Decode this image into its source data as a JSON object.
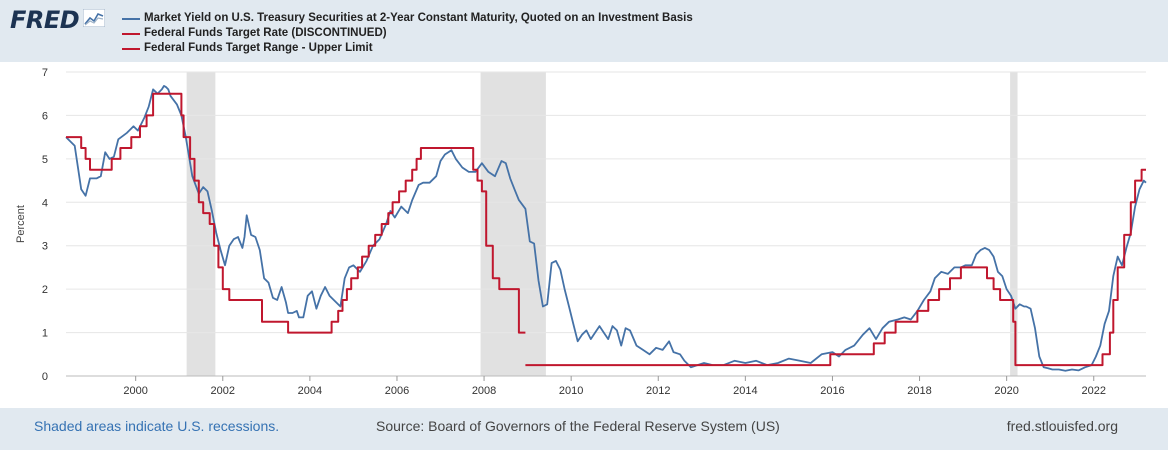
{
  "logo": {
    "text": "FRED"
  },
  "legend": [
    {
      "label": "Market Yield on U.S. Treasury Securities at 2-Year Constant Maturity, Quoted on an Investment Basis",
      "color": "#4572a7"
    },
    {
      "label": "Federal Funds Target Rate (DISCONTINUED)",
      "color": "#c0172e"
    },
    {
      "label": "Federal Funds Target Range - Upper Limit",
      "color": "#c0172e"
    }
  ],
  "footer": {
    "recession_note": "Shaded areas indicate U.S. recessions.",
    "source": "Source: Board of Governors of the Federal Reserve System (US)",
    "site": "fred.stlouisfed.org"
  },
  "chart_data": {
    "type": "line",
    "ylabel": "Percent",
    "xlim": [
      1998.4,
      2023.2
    ],
    "ylim": [
      0,
      7
    ],
    "y_ticks": [
      0,
      1,
      2,
      3,
      4,
      5,
      6,
      7
    ],
    "x_ticks": [
      2000,
      2002,
      2004,
      2006,
      2008,
      2010,
      2012,
      2014,
      2016,
      2018,
      2020,
      2022
    ],
    "grid": "horizontal",
    "recessions": [
      [
        2001.17,
        2001.83
      ],
      [
        2007.92,
        2009.42
      ],
      [
        2020.08,
        2020.25
      ]
    ],
    "series": [
      {
        "name": "Market Yield on U.S. Treasury Securities at 2-Year Constant Maturity, Quoted on an Investment Basis",
        "color": "#4572a7",
        "step": false,
        "points": [
          [
            1998.4,
            5.5
          ],
          [
            1998.6,
            5.3
          ],
          [
            1998.75,
            4.3
          ],
          [
            1998.85,
            4.15
          ],
          [
            1998.95,
            4.55
          ],
          [
            1999.1,
            4.55
          ],
          [
            1999.2,
            4.6
          ],
          [
            1999.3,
            5.15
          ],
          [
            1999.4,
            5.0
          ],
          [
            1999.5,
            5.05
          ],
          [
            1999.6,
            5.45
          ],
          [
            1999.8,
            5.6
          ],
          [
            1999.95,
            5.75
          ],
          [
            2000.05,
            5.65
          ],
          [
            2000.2,
            5.95
          ],
          [
            2000.3,
            6.2
          ],
          [
            2000.4,
            6.6
          ],
          [
            2000.5,
            6.5
          ],
          [
            2000.6,
            6.6
          ],
          [
            2000.65,
            6.68
          ],
          [
            2000.7,
            6.65
          ],
          [
            2000.75,
            6.6
          ],
          [
            2000.8,
            6.45
          ],
          [
            2000.95,
            6.25
          ],
          [
            2001.05,
            6.0
          ],
          [
            2001.15,
            5.5
          ],
          [
            2001.3,
            4.6
          ],
          [
            2001.45,
            4.2
          ],
          [
            2001.55,
            4.35
          ],
          [
            2001.65,
            4.25
          ],
          [
            2001.75,
            3.8
          ],
          [
            2001.85,
            3.3
          ],
          [
            2001.95,
            2.9
          ],
          [
            2002.05,
            2.55
          ],
          [
            2002.15,
            3.0
          ],
          [
            2002.25,
            3.15
          ],
          [
            2002.35,
            3.2
          ],
          [
            2002.45,
            2.95
          ],
          [
            2002.5,
            3.2
          ],
          [
            2002.55,
            3.7
          ],
          [
            2002.65,
            3.25
          ],
          [
            2002.75,
            3.2
          ],
          [
            2002.85,
            2.9
          ],
          [
            2002.95,
            2.25
          ],
          [
            2003.05,
            2.15
          ],
          [
            2003.15,
            1.8
          ],
          [
            2003.25,
            1.75
          ],
          [
            2003.35,
            2.05
          ],
          [
            2003.45,
            1.7
          ],
          [
            2003.5,
            1.45
          ],
          [
            2003.6,
            1.45
          ],
          [
            2003.7,
            1.5
          ],
          [
            2003.75,
            1.35
          ],
          [
            2003.85,
            1.35
          ],
          [
            2003.95,
            1.85
          ],
          [
            2004.05,
            1.95
          ],
          [
            2004.15,
            1.55
          ],
          [
            2004.25,
            1.85
          ],
          [
            2004.35,
            2.05
          ],
          [
            2004.45,
            1.85
          ],
          [
            2004.55,
            1.75
          ],
          [
            2004.7,
            1.6
          ],
          [
            2004.8,
            2.25
          ],
          [
            2004.9,
            2.5
          ],
          [
            2005.0,
            2.55
          ],
          [
            2005.15,
            2.4
          ],
          [
            2005.3,
            2.65
          ],
          [
            2005.45,
            3.0
          ],
          [
            2005.6,
            3.15
          ],
          [
            2005.75,
            3.5
          ],
          [
            2005.85,
            3.8
          ],
          [
            2005.95,
            3.65
          ],
          [
            2006.1,
            3.9
          ],
          [
            2006.25,
            3.75
          ],
          [
            2006.35,
            4.05
          ],
          [
            2006.5,
            4.4
          ],
          [
            2006.6,
            4.45
          ],
          [
            2006.75,
            4.45
          ],
          [
            2006.9,
            4.6
          ],
          [
            2007.0,
            4.95
          ],
          [
            2007.1,
            5.1
          ],
          [
            2007.25,
            5.2
          ],
          [
            2007.35,
            5.0
          ],
          [
            2007.5,
            4.8
          ],
          [
            2007.65,
            4.7
          ],
          [
            2007.8,
            4.7
          ],
          [
            2007.95,
            4.9
          ],
          [
            2008.1,
            4.7
          ],
          [
            2008.25,
            4.6
          ],
          [
            2008.4,
            4.95
          ],
          [
            2008.5,
            4.9
          ],
          [
            2008.6,
            4.55
          ],
          [
            2008.7,
            4.3
          ],
          [
            2008.8,
            4.05
          ],
          [
            2008.95,
            3.85
          ],
          [
            2009.05,
            3.1
          ],
          [
            2009.15,
            3.05
          ],
          [
            2009.25,
            2.2
          ],
          [
            2009.35,
            1.6
          ],
          [
            2009.45,
            1.65
          ],
          [
            2009.55,
            2.6
          ],
          [
            2009.65,
            2.65
          ],
          [
            2009.75,
            2.45
          ],
          [
            2009.85,
            2.0
          ],
          [
            2009.95,
            1.6
          ],
          [
            2010.05,
            1.2
          ],
          [
            2010.15,
            0.8
          ],
          [
            2010.25,
            0.95
          ],
          [
            2010.35,
            1.05
          ],
          [
            2010.45,
            0.85
          ],
          [
            2010.55,
            1.0
          ],
          [
            2010.65,
            1.15
          ],
          [
            2010.75,
            1.0
          ],
          [
            2010.85,
            0.85
          ],
          [
            2010.95,
            1.15
          ],
          [
            2011.05,
            1.05
          ],
          [
            2011.15,
            0.7
          ],
          [
            2011.25,
            1.1
          ],
          [
            2011.35,
            1.05
          ],
          [
            2011.5,
            0.7
          ],
          [
            2011.65,
            0.6
          ],
          [
            2011.8,
            0.5
          ],
          [
            2011.95,
            0.65
          ],
          [
            2012.1,
            0.6
          ],
          [
            2012.25,
            0.8
          ],
          [
            2012.35,
            0.55
          ],
          [
            2012.5,
            0.5
          ],
          [
            2012.6,
            0.35
          ],
          [
            2012.75,
            0.2
          ],
          [
            2012.9,
            0.25
          ],
          [
            2013.05,
            0.3
          ],
          [
            2013.25,
            0.25
          ],
          [
            2013.5,
            0.25
          ],
          [
            2013.75,
            0.35
          ],
          [
            2014.0,
            0.3
          ],
          [
            2014.25,
            0.35
          ],
          [
            2014.5,
            0.25
          ],
          [
            2014.75,
            0.3
          ],
          [
            2015.0,
            0.4
          ],
          [
            2015.25,
            0.35
          ],
          [
            2015.5,
            0.3
          ],
          [
            2015.75,
            0.5
          ],
          [
            2016.0,
            0.55
          ],
          [
            2016.15,
            0.45
          ],
          [
            2016.3,
            0.6
          ],
          [
            2016.5,
            0.7
          ],
          [
            2016.7,
            0.95
          ],
          [
            2016.85,
            1.1
          ],
          [
            2017.0,
            0.85
          ],
          [
            2017.15,
            1.1
          ],
          [
            2017.3,
            1.25
          ],
          [
            2017.5,
            1.3
          ],
          [
            2017.65,
            1.35
          ],
          [
            2017.8,
            1.3
          ],
          [
            2017.95,
            1.5
          ],
          [
            2018.1,
            1.75
          ],
          [
            2018.25,
            1.95
          ],
          [
            2018.35,
            2.25
          ],
          [
            2018.5,
            2.4
          ],
          [
            2018.65,
            2.35
          ],
          [
            2018.8,
            2.5
          ],
          [
            2018.95,
            2.5
          ],
          [
            2019.05,
            2.55
          ],
          [
            2019.2,
            2.55
          ],
          [
            2019.3,
            2.8
          ],
          [
            2019.4,
            2.9
          ],
          [
            2019.5,
            2.95
          ],
          [
            2019.6,
            2.9
          ],
          [
            2019.7,
            2.75
          ],
          [
            2019.8,
            2.4
          ],
          [
            2019.9,
            2.3
          ],
          [
            2020.0,
            2.0
          ],
          [
            2020.1,
            1.85
          ],
          [
            2020.2,
            1.55
          ],
          [
            2020.3,
            1.65
          ],
          [
            2020.4,
            1.6
          ],
          [
            2020.45,
            1.6
          ],
          [
            2020.55,
            1.55
          ],
          [
            2020.65,
            1.1
          ],
          [
            2020.75,
            0.45
          ],
          [
            2020.85,
            0.2
          ],
          [
            2020.95,
            0.18
          ],
          [
            2021.05,
            0.15
          ],
          [
            2021.2,
            0.15
          ],
          [
            2021.35,
            0.12
          ],
          [
            2021.5,
            0.15
          ],
          [
            2021.65,
            0.13
          ],
          [
            2021.8,
            0.2
          ],
          [
            2021.95,
            0.25
          ],
          [
            2022.05,
            0.45
          ],
          [
            2022.15,
            0.7
          ],
          [
            2022.25,
            1.2
          ],
          [
            2022.35,
            1.5
          ],
          [
            2022.45,
            2.3
          ],
          [
            2022.55,
            2.75
          ],
          [
            2022.65,
            2.55
          ],
          [
            2022.75,
            2.95
          ],
          [
            2022.85,
            3.3
          ],
          [
            2022.95,
            3.9
          ],
          [
            2023.05,
            4.3
          ],
          [
            2023.15,
            4.5
          ],
          [
            2023.2,
            4.45
          ]
        ]
      },
      {
        "name": "Federal Funds Target Rate (DISCONTINUED)",
        "color": "#c0172e",
        "step": true,
        "points": [
          [
            1998.4,
            5.5
          ],
          [
            1998.75,
            5.25
          ],
          [
            1998.85,
            5.0
          ],
          [
            1998.95,
            4.75
          ],
          [
            1999.45,
            5.0
          ],
          [
            1999.65,
            5.25
          ],
          [
            1999.9,
            5.5
          ],
          [
            2000.1,
            5.75
          ],
          [
            2000.25,
            6.0
          ],
          [
            2000.4,
            6.5
          ],
          [
            2001.05,
            6.0
          ],
          [
            2001.1,
            5.5
          ],
          [
            2001.25,
            5.0
          ],
          [
            2001.35,
            4.5
          ],
          [
            2001.45,
            4.0
          ],
          [
            2001.55,
            3.75
          ],
          [
            2001.7,
            3.5
          ],
          [
            2001.8,
            3.0
          ],
          [
            2001.9,
            2.5
          ],
          [
            2002.0,
            2.0
          ],
          [
            2002.15,
            1.75
          ],
          [
            2002.9,
            1.25
          ],
          [
            2003.5,
            1.0
          ],
          [
            2004.5,
            1.25
          ],
          [
            2004.65,
            1.5
          ],
          [
            2004.75,
            1.75
          ],
          [
            2004.85,
            2.0
          ],
          [
            2004.95,
            2.25
          ],
          [
            2005.1,
            2.5
          ],
          [
            2005.2,
            2.75
          ],
          [
            2005.35,
            3.0
          ],
          [
            2005.5,
            3.25
          ],
          [
            2005.65,
            3.5
          ],
          [
            2005.8,
            3.75
          ],
          [
            2005.9,
            4.0
          ],
          [
            2006.05,
            4.25
          ],
          [
            2006.2,
            4.5
          ],
          [
            2006.35,
            4.75
          ],
          [
            2006.45,
            5.0
          ],
          [
            2006.55,
            5.25
          ],
          [
            2007.75,
            4.75
          ],
          [
            2007.85,
            4.5
          ],
          [
            2007.95,
            4.25
          ],
          [
            2008.05,
            3.0
          ],
          [
            2008.2,
            2.25
          ],
          [
            2008.35,
            2.0
          ],
          [
            2008.8,
            1.0
          ],
          [
            2008.95,
            1.0
          ]
        ]
      },
      {
        "name": "Federal Funds Target Range - Upper Limit",
        "color": "#c0172e",
        "step": true,
        "points": [
          [
            2008.95,
            0.25
          ],
          [
            2015.95,
            0.5
          ],
          [
            2016.95,
            0.75
          ],
          [
            2017.2,
            1.0
          ],
          [
            2017.45,
            1.25
          ],
          [
            2017.95,
            1.5
          ],
          [
            2018.2,
            1.75
          ],
          [
            2018.45,
            2.0
          ],
          [
            2018.7,
            2.25
          ],
          [
            2018.95,
            2.5
          ],
          [
            2019.55,
            2.25
          ],
          [
            2019.7,
            2.0
          ],
          [
            2019.85,
            1.75
          ],
          [
            2020.15,
            1.25
          ],
          [
            2020.2,
            0.25
          ],
          [
            2022.2,
            0.5
          ],
          [
            2022.37,
            1.0
          ],
          [
            2022.45,
            1.75
          ],
          [
            2022.55,
            2.5
          ],
          [
            2022.7,
            3.25
          ],
          [
            2022.85,
            4.0
          ],
          [
            2022.95,
            4.5
          ],
          [
            2023.1,
            4.75
          ],
          [
            2023.2,
            4.75
          ]
        ]
      }
    ]
  }
}
